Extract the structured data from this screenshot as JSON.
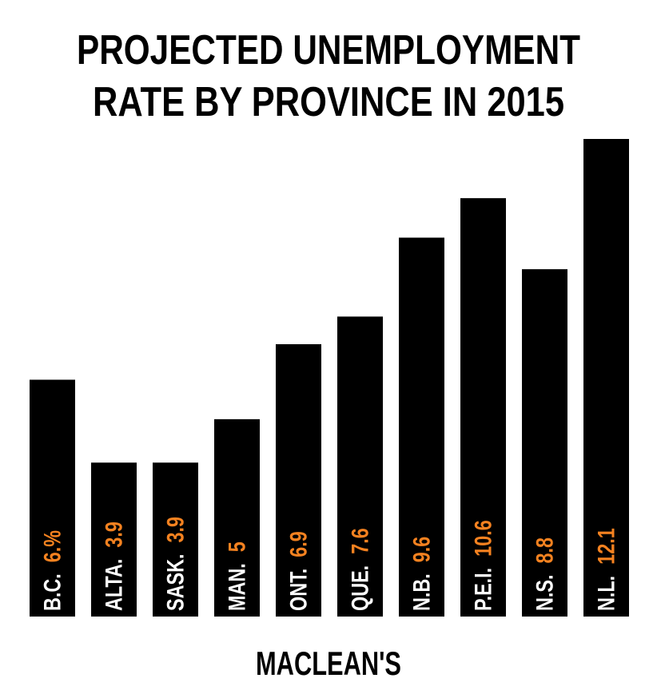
{
  "chart_data": {
    "type": "bar",
    "title": [
      "PROJECTED UNEMPLOYMENT",
      "RATE BY PROVINCE IN 2015"
    ],
    "categories": [
      "B.C.",
      "ALTA.",
      "SASK.",
      "MAN.",
      "ONT.",
      "QUE.",
      "N.B.",
      "P.E.I.",
      "N.S.",
      "N.L."
    ],
    "values": [
      6,
      3.9,
      3.9,
      5,
      6.9,
      7.6,
      9.6,
      10.6,
      8.8,
      12.1
    ],
    "value_labels": [
      "6.%",
      "3.9",
      "3.9",
      "5",
      "6.9",
      "7.6",
      "9.6",
      "10.6",
      "8.8",
      "12.1"
    ],
    "color": "#000000",
    "label_color": "#ffffff",
    "value_label_color": "#f58220",
    "source": "MACLEAN'S"
  }
}
